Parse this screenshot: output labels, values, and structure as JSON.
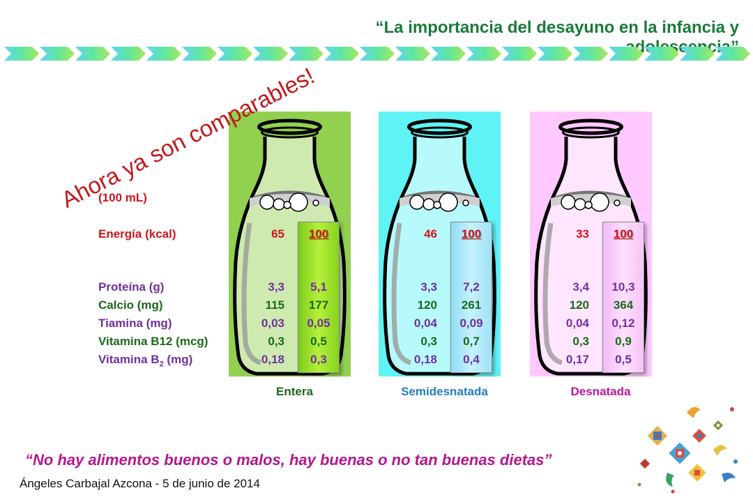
{
  "header": {
    "title": "“La importancia del desayuno en la infancia y adolescencia”"
  },
  "slogan": "Ahora ya son comparables!",
  "volume_label": "(100 mL)",
  "rows": [
    {
      "label": "Energía (kcal)",
      "color": "#d0161c"
    },
    {
      "label": "Proteína (g)",
      "color": "#7030a0"
    },
    {
      "label": "Calcio (mg)",
      "color": "#1a6a1a"
    },
    {
      "label": "Tiamina (mg)",
      "color": "#7030a0"
    },
    {
      "label": "Vitamina B12 (mcg)",
      "color": "#1a6a1a"
    },
    {
      "label_main": "Vitamina B",
      "label_sub": "2",
      "label_unit": " (mg)",
      "color": "#7030a0"
    }
  ],
  "milks": [
    {
      "name": "Entera",
      "name_color": "#1a6a1a",
      "panel_color": "#92d050",
      "raw": [
        "65",
        "3,3",
        "115",
        "0,03",
        "0,3",
        "0,18"
      ],
      "norm": [
        "100",
        "5,1",
        "177",
        "0,05",
        "0,5",
        "0,3"
      ]
    },
    {
      "name": "Semidesnatada",
      "name_color": "#1f7fbf",
      "panel_color": "#5ff3f5",
      "raw": [
        "46",
        "3,3",
        "120",
        "0,04",
        "0,3",
        "0,18"
      ],
      "norm": [
        "100",
        "7,2",
        "261",
        "0,09",
        "0,7",
        "0,4"
      ]
    },
    {
      "name": "Desnatada",
      "name_color": "#c0169a",
      "panel_color": "#ffc8ff",
      "raw": [
        "33",
        "3,4",
        "120",
        "0,04",
        "0,3",
        "0,17"
      ],
      "norm": [
        "100",
        "10,3",
        "364",
        "0,12",
        "0,9",
        "0,5"
      ]
    }
  ],
  "quote": "“No hay alimentos buenos o malos, hay buenas o no tan buenas dietas”",
  "footer": {
    "author": "Ángeles Carbajal Azcona - 5 de junio de 2014"
  }
}
